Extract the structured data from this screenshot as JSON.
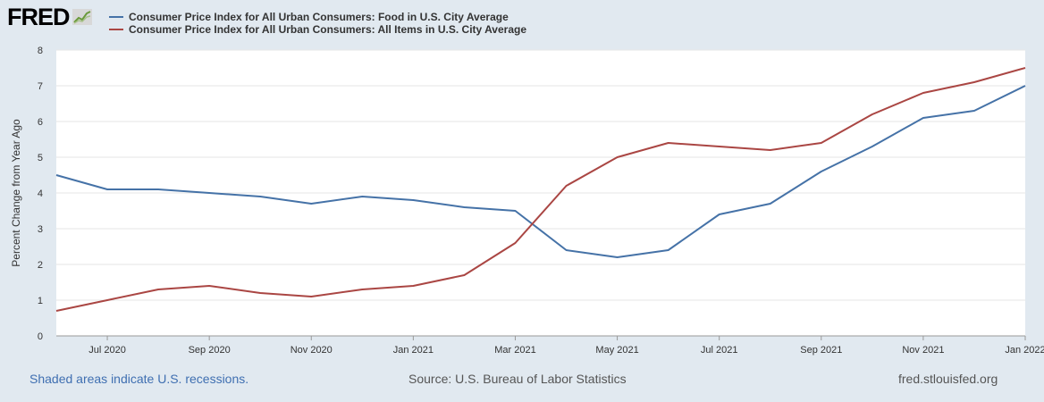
{
  "logo": {
    "text": "FRED"
  },
  "colors": {
    "food": "#4572a7",
    "all_items": "#aa4643",
    "background": "#e1e9f0",
    "plot_bg": "#ffffff"
  },
  "footer": {
    "recessions": "Shaded areas indicate U.S. recessions.",
    "source": "Source: U.S. Bureau of Labor Statistics",
    "site": "fred.stlouisfed.org"
  },
  "chart_data": {
    "type": "line",
    "title": "",
    "xlabel": "",
    "ylabel": "Percent Change from Year Ago",
    "ylim": [
      0,
      8
    ],
    "yticks": [
      0,
      1,
      2,
      3,
      4,
      5,
      6,
      7,
      8
    ],
    "x": [
      "2020-06",
      "2020-07",
      "2020-08",
      "2020-09",
      "2020-10",
      "2020-11",
      "2020-12",
      "2021-01",
      "2021-02",
      "2021-03",
      "2021-04",
      "2021-05",
      "2021-06",
      "2021-07",
      "2021-08",
      "2021-09",
      "2021-10",
      "2021-11",
      "2021-12",
      "2022-01"
    ],
    "xtick_labels": [
      {
        "x": "2020-07",
        "label": "Jul 2020"
      },
      {
        "x": "2020-09",
        "label": "Sep 2020"
      },
      {
        "x": "2020-11",
        "label": "Nov 2020"
      },
      {
        "x": "2021-01",
        "label": "Jan 2021"
      },
      {
        "x": "2021-03",
        "label": "Mar 2021"
      },
      {
        "x": "2021-05",
        "label": "May 2021"
      },
      {
        "x": "2021-07",
        "label": "Jul 2021"
      },
      {
        "x": "2021-09",
        "label": "Sep 2021"
      },
      {
        "x": "2021-11",
        "label": "Nov 2021"
      },
      {
        "x": "2022-01",
        "label": "Jan 2022"
      }
    ],
    "grid": true,
    "legend_position": "top-left",
    "series": [
      {
        "name": "Consumer Price Index for All Urban Consumers: Food in U.S. City Average",
        "color": "#4572a7",
        "values": [
          4.5,
          4.1,
          4.1,
          4.0,
          3.9,
          3.7,
          3.9,
          3.8,
          3.6,
          3.5,
          2.4,
          2.2,
          2.4,
          3.4,
          3.7,
          4.6,
          5.3,
          6.1,
          6.3,
          7.0
        ]
      },
      {
        "name": "Consumer Price Index for All Urban Consumers: All Items in U.S. City Average",
        "color": "#aa4643",
        "values": [
          0.7,
          1.0,
          1.3,
          1.4,
          1.2,
          1.1,
          1.3,
          1.4,
          1.7,
          2.6,
          4.2,
          5.0,
          5.4,
          5.3,
          5.2,
          5.4,
          6.2,
          6.8,
          7.1,
          7.5
        ]
      }
    ]
  }
}
